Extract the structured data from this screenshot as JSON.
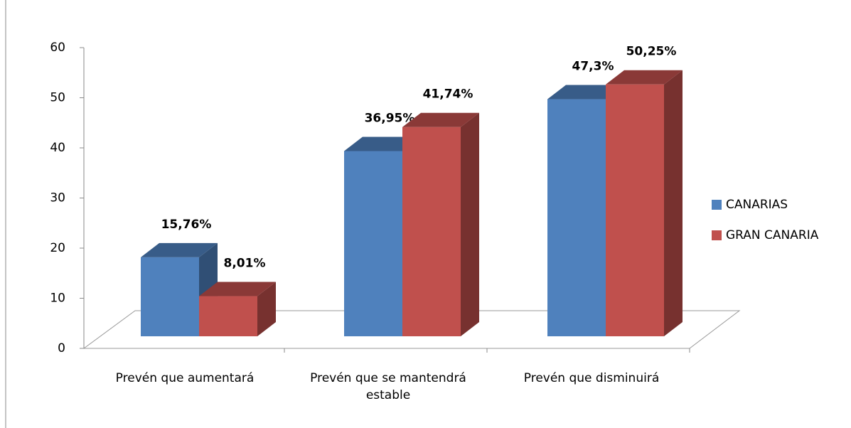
{
  "chart_data": {
    "type": "bar3d",
    "categories": [
      "Prevén que aumentará",
      "Prevén que se mantendrá estable",
      "Prevén que disminuirá"
    ],
    "series": [
      {
        "name": "CANARIAS",
        "color": "#4f81bd",
        "values": [
          15.76,
          36.95,
          47.3
        ],
        "value_labels": [
          "15,76%",
          "36,95%",
          "47,3%"
        ]
      },
      {
        "name": "GRAN CANARIA",
        "color": "#c0504d",
        "values": [
          8.01,
          41.74,
          50.25
        ],
        "value_labels": [
          "8,01%",
          "41,74%",
          "50,25%"
        ]
      }
    ],
    "ylim": [
      0,
      60
    ],
    "yticks": [
      0,
      10,
      20,
      30,
      40,
      50,
      60
    ],
    "legend": "right"
  }
}
